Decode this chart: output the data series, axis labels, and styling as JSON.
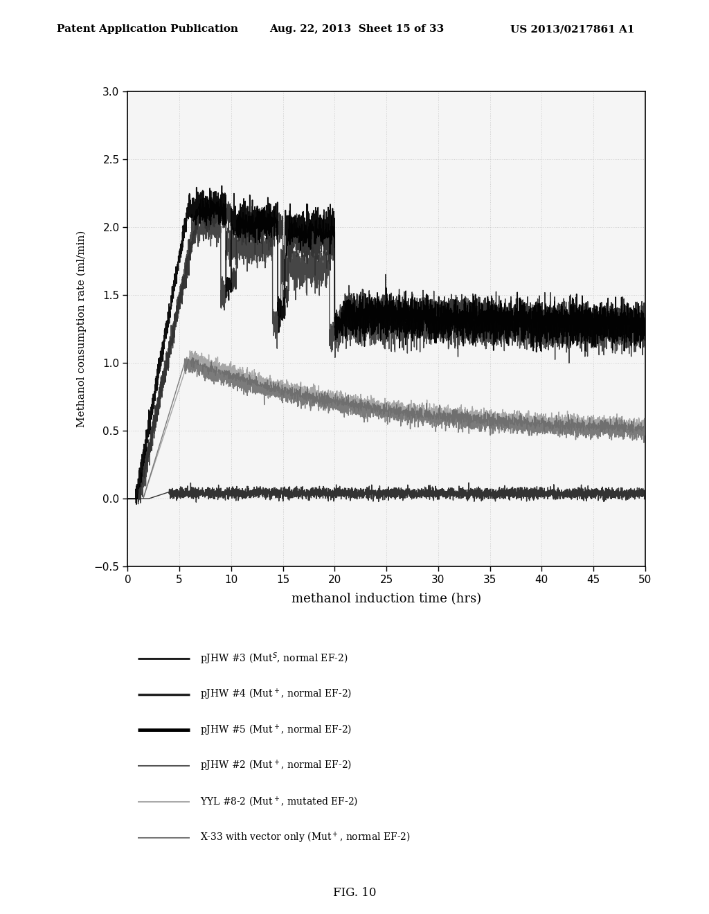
{
  "header_left": "Patent Application Publication",
  "header_mid": "Aug. 22, 2013  Sheet 15 of 33",
  "header_right": "US 2013/0217861 A1",
  "xlabel": "methanol induction time (hrs)",
  "ylabel": "Methanol consumption rate (ml/min)",
  "xlim": [
    0,
    50
  ],
  "ylim": [
    -0.5,
    3.0
  ],
  "xticks": [
    0,
    5,
    10,
    15,
    20,
    25,
    30,
    35,
    40,
    45,
    50
  ],
  "yticks": [
    -0.5,
    0.0,
    0.5,
    1.0,
    1.5,
    2.0,
    2.5,
    3.0
  ],
  "fig_caption": "FIG. 10",
  "legend_entries": [
    {
      "label": "pJHW #3 (Mut$^S$, normal EF-2)",
      "color": "#000000",
      "lw": 2.0
    },
    {
      "label": "pJHW #4 (Mut$^+$, normal EF-2)",
      "color": "#000000",
      "lw": 2.5
    },
    {
      "label": "pJHW #5 (Mut$^+$, normal EF-2)",
      "color": "#000000",
      "lw": 3.5
    },
    {
      "label": "pJHW #2 (Mut$^+$, normal EF-2)",
      "color": "#555555",
      "lw": 1.5
    },
    {
      "label": "YYL #8-2 (Mut$^+$, mutated EF-2)",
      "color": "#aaaaaa",
      "lw": 1.5
    },
    {
      "label": "X-33 with vector only (Mut$^+$, normal EF-2)",
      "color": "#777777",
      "lw": 1.5
    }
  ],
  "bg_color": "#ffffff",
  "plot_bg_color": "#f5f5f5",
  "grid_color": "#cccccc"
}
